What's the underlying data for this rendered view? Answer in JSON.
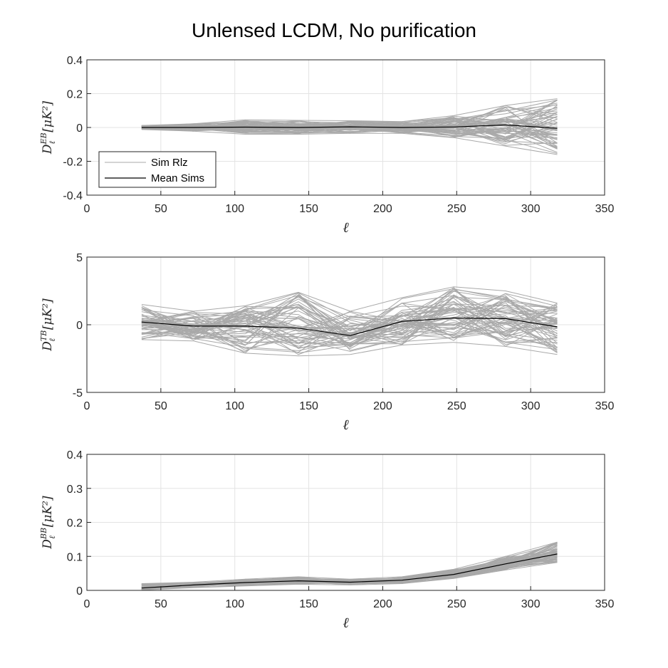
{
  "figure": {
    "title": "Unlensed LCDM, No purification"
  },
  "legend": {
    "items": [
      {
        "label": "Sim Rlz",
        "color": "#a9a9a9"
      },
      {
        "label": "Mean Sims",
        "color": "#000000"
      }
    ],
    "location": "bottom-left of first panel"
  },
  "colors": {
    "sim_rlz": "#a9a9a9",
    "mean": "#000000",
    "grid": "#e3e3e3",
    "axis": "#262626"
  },
  "chart_data": [
    {
      "type": "line",
      "panel": "EB",
      "xlabel": "ℓ",
      "ylabel_main": "D",
      "ylabel_sub": "ℓ",
      "ylabel_sup": "EB",
      "ylabel_unit": "[μK²]",
      "xlim": [
        0,
        350
      ],
      "ylim": [
        -0.4,
        0.4
      ],
      "xticks": [
        "0",
        "50",
        "100",
        "150",
        "200",
        "250",
        "300",
        "350"
      ],
      "yticks": [
        "-0.4",
        "-0.2",
        "0",
        "0.2",
        "0.4"
      ],
      "ytick_values": [
        -0.4,
        -0.2,
        0,
        0.2,
        0.4
      ],
      "grid": true,
      "x": [
        37,
        72,
        107,
        143,
        178,
        213,
        248,
        283,
        318
      ],
      "series": [
        {
          "name": "Mean Sims",
          "values": [
            0.0,
            0.0,
            0.002,
            0.0,
            0.004,
            0.0,
            0.003,
            0.015,
            -0.005
          ]
        }
      ],
      "sim_envelope": {
        "upper": [
          0.012,
          0.022,
          0.045,
          0.042,
          0.04,
          0.035,
          0.07,
          0.13,
          0.17
        ],
        "lower": [
          -0.012,
          -0.022,
          -0.04,
          -0.04,
          -0.035,
          -0.035,
          -0.06,
          -0.11,
          -0.16
        ]
      },
      "sim_count": 60
    },
    {
      "type": "line",
      "panel": "TB",
      "xlabel": "ℓ",
      "ylabel_main": "D",
      "ylabel_sub": "ℓ",
      "ylabel_sup": "TB",
      "ylabel_unit": "[μK²]",
      "xlim": [
        0,
        350
      ],
      "ylim": [
        -5,
        5
      ],
      "xticks": [
        "0",
        "50",
        "100",
        "150",
        "200",
        "250",
        "300",
        "350"
      ],
      "yticks": [
        "-5",
        "0",
        "5"
      ],
      "ytick_values": [
        -5,
        0,
        5
      ],
      "grid": true,
      "x": [
        37,
        72,
        107,
        143,
        178,
        213,
        248,
        283,
        318
      ],
      "series": [
        {
          "name": "Mean Sims",
          "values": [
            0.2,
            -0.1,
            -0.1,
            -0.25,
            -0.8,
            0.25,
            0.5,
            0.45,
            -0.15
          ]
        }
      ],
      "sim_envelope": {
        "upper": [
          1.5,
          1.0,
          1.4,
          2.4,
          1.0,
          2.0,
          2.8,
          2.5,
          1.6
        ],
        "lower": [
          -1.1,
          -1.2,
          -2.1,
          -2.3,
          -2.2,
          -1.5,
          -1.3,
          -1.6,
          -2.2
        ]
      },
      "sim_count": 60
    },
    {
      "type": "line",
      "panel": "BB",
      "xlabel": "ℓ",
      "ylabel_main": "D",
      "ylabel_sub": "ℓ",
      "ylabel_sup": "BB",
      "ylabel_unit": "[μK²]",
      "xlim": [
        0,
        350
      ],
      "ylim": [
        0,
        0.4
      ],
      "xticks": [
        "0",
        "50",
        "100",
        "150",
        "200",
        "250",
        "300",
        "350"
      ],
      "yticks": [
        "0",
        "0.1",
        "0.2",
        "0.3",
        "0.4"
      ],
      "ytick_values": [
        0,
        0.1,
        0.2,
        0.3,
        0.4
      ],
      "grid": true,
      "x": [
        37,
        72,
        107,
        143,
        178,
        213,
        248,
        283,
        318
      ],
      "series": [
        {
          "name": "Mean Sims",
          "values": [
            0.007,
            0.016,
            0.023,
            0.028,
            0.024,
            0.03,
            0.047,
            0.078,
            0.107
          ]
        }
      ],
      "sim_envelope": {
        "upper": [
          0.02,
          0.024,
          0.033,
          0.04,
          0.033,
          0.04,
          0.062,
          0.1,
          0.142
        ],
        "lower": [
          0.001,
          0.008,
          0.013,
          0.018,
          0.016,
          0.02,
          0.035,
          0.06,
          0.082
        ]
      },
      "sim_count": 60
    }
  ]
}
